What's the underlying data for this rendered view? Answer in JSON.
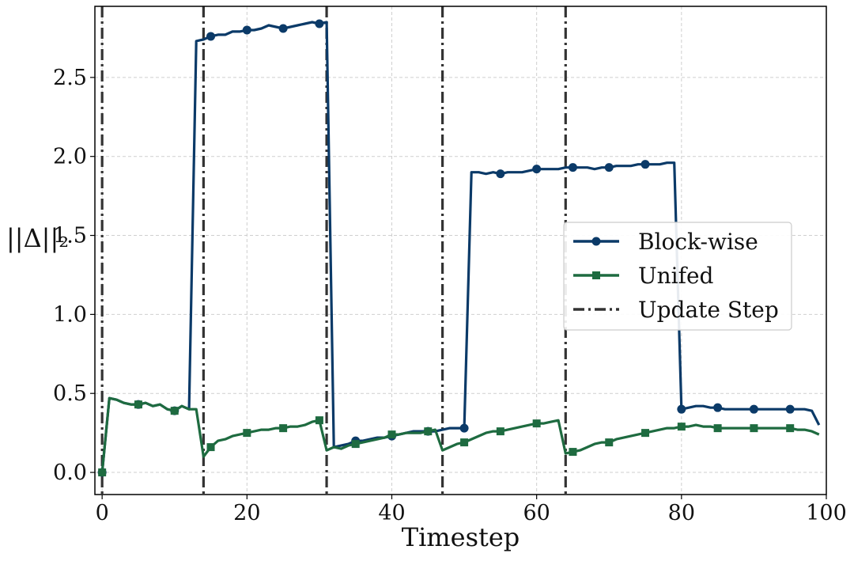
{
  "chart_data": {
    "type": "line",
    "xlabel": "Timestep",
    "ylabel": "||Δ||₂",
    "xlim": [
      -1,
      100
    ],
    "ylim": [
      -0.14,
      2.95
    ],
    "x_ticks": [
      0,
      20,
      40,
      60,
      80,
      100
    ],
    "x_tick_labels": [
      "0",
      "20",
      "40",
      "60",
      "80",
      "100"
    ],
    "y_ticks": [
      0.0,
      0.5,
      1.0,
      1.5,
      2.0,
      2.5
    ],
    "y_tick_labels": [
      "0.0",
      "0.5",
      "1.0",
      "1.5",
      "2.0",
      "2.5"
    ],
    "grid": true,
    "legend_position": "center-right",
    "series": [
      {
        "name": "Block-wise",
        "color": "#0b3a68",
        "marker": "circle",
        "marker_every": 5,
        "x": [
          0,
          1,
          2,
          3,
          4,
          5,
          6,
          7,
          8,
          9,
          10,
          11,
          12,
          13,
          14,
          15,
          16,
          17,
          18,
          19,
          20,
          21,
          22,
          23,
          24,
          25,
          26,
          27,
          28,
          29,
          30,
          31,
          32,
          33,
          34,
          35,
          36,
          37,
          38,
          39,
          40,
          41,
          42,
          43,
          44,
          45,
          46,
          47,
          48,
          49,
          50,
          51,
          52,
          53,
          54,
          55,
          56,
          57,
          58,
          59,
          60,
          61,
          62,
          63,
          64,
          65,
          66,
          67,
          68,
          69,
          70,
          71,
          72,
          73,
          74,
          75,
          76,
          77,
          78,
          79,
          80,
          81,
          82,
          83,
          84,
          85,
          86,
          87,
          88,
          89,
          90,
          91,
          92,
          93,
          94,
          95,
          96,
          97,
          98,
          99
        ],
        "y": [
          0.0,
          0.47,
          0.46,
          0.44,
          0.43,
          0.43,
          0.44,
          0.42,
          0.43,
          0.4,
          0.39,
          0.42,
          0.4,
          2.73,
          2.74,
          2.76,
          2.77,
          2.77,
          2.79,
          2.79,
          2.8,
          2.8,
          2.81,
          2.83,
          2.82,
          2.81,
          2.82,
          2.83,
          2.84,
          2.85,
          2.84,
          2.85,
          0.16,
          0.17,
          0.18,
          0.2,
          0.2,
          0.21,
          0.22,
          0.22,
          0.23,
          0.24,
          0.25,
          0.26,
          0.26,
          0.26,
          0.26,
          0.27,
          0.28,
          0.28,
          0.28,
          1.9,
          1.9,
          1.89,
          1.9,
          1.89,
          1.9,
          1.9,
          1.9,
          1.91,
          1.92,
          1.92,
          1.92,
          1.92,
          1.93,
          1.93,
          1.93,
          1.93,
          1.92,
          1.93,
          1.93,
          1.94,
          1.94,
          1.94,
          1.95,
          1.95,
          1.95,
          1.95,
          1.96,
          1.96,
          0.4,
          0.41,
          0.42,
          0.42,
          0.41,
          0.41,
          0.4,
          0.4,
          0.4,
          0.4,
          0.4,
          0.4,
          0.4,
          0.4,
          0.4,
          0.4,
          0.4,
          0.4,
          0.39,
          0.3
        ]
      },
      {
        "name": "Unifed",
        "color": "#1e6b40",
        "marker": "square",
        "marker_every": 5,
        "x": [
          0,
          1,
          2,
          3,
          4,
          5,
          6,
          7,
          8,
          9,
          10,
          11,
          12,
          13,
          14,
          15,
          16,
          17,
          18,
          19,
          20,
          21,
          22,
          23,
          24,
          25,
          26,
          27,
          28,
          29,
          30,
          31,
          32,
          33,
          34,
          35,
          36,
          37,
          38,
          39,
          40,
          41,
          42,
          43,
          44,
          45,
          46,
          47,
          48,
          49,
          50,
          51,
          52,
          53,
          54,
          55,
          56,
          57,
          58,
          59,
          60,
          61,
          62,
          63,
          64,
          65,
          66,
          67,
          68,
          69,
          70,
          71,
          72,
          73,
          74,
          75,
          76,
          77,
          78,
          79,
          80,
          81,
          82,
          83,
          84,
          85,
          86,
          87,
          88,
          89,
          90,
          91,
          92,
          93,
          94,
          95,
          96,
          97,
          98,
          99
        ],
        "y": [
          0.0,
          0.47,
          0.46,
          0.44,
          0.43,
          0.43,
          0.44,
          0.42,
          0.43,
          0.4,
          0.39,
          0.42,
          0.4,
          0.4,
          0.1,
          0.16,
          0.2,
          0.21,
          0.23,
          0.24,
          0.25,
          0.26,
          0.27,
          0.27,
          0.28,
          0.28,
          0.29,
          0.29,
          0.3,
          0.32,
          0.33,
          0.14,
          0.16,
          0.15,
          0.17,
          0.18,
          0.19,
          0.2,
          0.21,
          0.22,
          0.24,
          0.24,
          0.25,
          0.25,
          0.25,
          0.26,
          0.27,
          0.14,
          0.16,
          0.18,
          0.19,
          0.21,
          0.23,
          0.25,
          0.26,
          0.26,
          0.27,
          0.28,
          0.29,
          0.3,
          0.31,
          0.31,
          0.32,
          0.33,
          0.12,
          0.13,
          0.14,
          0.16,
          0.18,
          0.19,
          0.19,
          0.21,
          0.22,
          0.23,
          0.24,
          0.25,
          0.26,
          0.27,
          0.28,
          0.28,
          0.29,
          0.29,
          0.3,
          0.29,
          0.29,
          0.28,
          0.28,
          0.28,
          0.28,
          0.28,
          0.28,
          0.28,
          0.28,
          0.28,
          0.28,
          0.28,
          0.27,
          0.27,
          0.26,
          0.24
        ]
      },
      {
        "name": "Update Step",
        "color": "#333333",
        "style": "dash-dot",
        "x_positions": [
          0,
          14,
          31,
          47,
          64
        ]
      }
    ]
  }
}
